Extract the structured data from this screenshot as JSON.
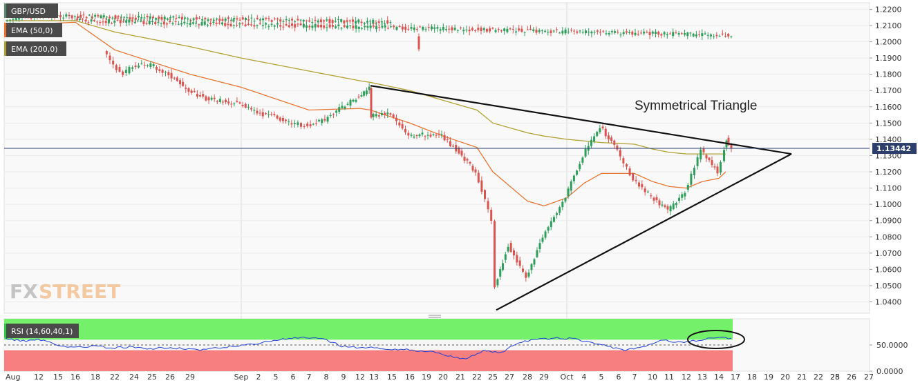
{
  "chart_data": {
    "type": "candlestick",
    "symbol": "GBP/USD",
    "legend": [
      {
        "label": "GBP/USD",
        "color": "#5b8c6e"
      },
      {
        "label": "EMA (50,0)",
        "color": "#e8742f"
      },
      {
        "label": "EMA (200,0)",
        "color": "#b0a232"
      }
    ],
    "y_ticks": [
      "1.2200",
      "1.2100",
      "1.2000",
      "1.1900",
      "1.1800",
      "1.1700",
      "1.1600",
      "1.1500",
      "1.1400",
      "1.1300",
      "1.1200",
      "1.1100",
      "1.1000",
      "1.0900",
      "1.0800",
      "1.0700",
      "1.0600",
      "1.0500",
      "1.0400"
    ],
    "ylim": [
      1.033,
      1.224
    ],
    "x_ticks": [
      "Aug",
      "12",
      "15",
      "16",
      "18",
      "22",
      "24",
      "25",
      "26",
      "29",
      "Sep",
      "2",
      "5",
      "6",
      "7",
      "8",
      "9",
      "12",
      "13",
      "15",
      "16",
      "19",
      "20",
      "21",
      "22",
      "25",
      "27",
      "28",
      "29",
      "Oct",
      "4",
      "5",
      "6",
      "7",
      "10",
      "11",
      "12",
      "13",
      "14",
      "17",
      "18",
      "19",
      "20",
      "21",
      "22",
      "25",
      "26",
      "27",
      "28"
    ],
    "current_price": {
      "label": "1.13442",
      "value": 1.13442
    },
    "annotation": "Symmetrical Triangle",
    "trendlines": [
      {
        "from": {
          "x": 13.0,
          "y": 1.173
        },
        "to": {
          "x": 21.7,
          "y": 1.131
        }
      },
      {
        "from": {
          "x": 25.0,
          "y": 1.035
        },
        "to": {
          "x": 21.7,
          "y": 1.131
        }
      }
    ],
    "price_path": [
      [
        "Aug",
        1.213
      ],
      [
        "12",
        1.216
      ],
      [
        "15",
        1.212
      ],
      [
        "16",
        1.213
      ],
      [
        "18",
        1.204
      ],
      [
        "19",
        1.195
      ],
      [
        "22",
        1.185
      ],
      [
        "23",
        1.18
      ],
      [
        "24",
        1.185
      ],
      [
        "25",
        1.186
      ],
      [
        "26",
        1.18
      ],
      [
        "29",
        1.17
      ],
      [
        "30",
        1.165
      ],
      [
        "Sep",
        1.162
      ],
      [
        "2",
        1.156
      ],
      [
        "5",
        1.154
      ],
      [
        "6",
        1.15
      ],
      [
        "7",
        1.148
      ],
      [
        "8",
        1.152
      ],
      [
        "9",
        1.16
      ],
      [
        "12",
        1.166
      ],
      [
        "13",
        1.172
      ],
      [
        "13b",
        1.154
      ],
      [
        "15",
        1.156
      ],
      [
        "16",
        1.142
      ],
      [
        "19",
        1.143
      ],
      [
        "20",
        1.142
      ],
      [
        "21",
        1.132
      ],
      [
        "22",
        1.12
      ],
      [
        "25",
        1.09
      ],
      [
        "25b",
        1.05
      ],
      [
        "27",
        1.075
      ],
      [
        "28",
        1.055
      ],
      [
        "29",
        1.08
      ],
      [
        "Oct",
        1.105
      ],
      [
        "4",
        1.13
      ],
      [
        "5",
        1.148
      ],
      [
        "6",
        1.133
      ],
      [
        "7",
        1.115
      ],
      [
        "10",
        1.105
      ],
      [
        "11",
        1.096
      ],
      [
        "12",
        1.108
      ],
      [
        "13",
        1.133
      ],
      [
        "14",
        1.12
      ],
      [
        "17",
        1.134
      ],
      [
        "17b",
        1.14
      ],
      [
        "18",
        1.1344
      ]
    ],
    "ema50": [
      [
        "Aug",
        1.21
      ],
      [
        "16",
        1.212
      ],
      [
        "22",
        1.195
      ],
      [
        "29",
        1.18
      ],
      [
        "Sep",
        1.172
      ],
      [
        "7",
        1.158
      ],
      [
        "12",
        1.159
      ],
      [
        "13",
        1.158
      ],
      [
        "16",
        1.15
      ],
      [
        "20",
        1.142
      ],
      [
        "22",
        1.135
      ],
      [
        "25",
        1.12
      ],
      [
        "28",
        1.102
      ],
      [
        "29",
        1.099
      ],
      [
        "Oct",
        1.104
      ],
      [
        "4",
        1.113
      ],
      [
        "5",
        1.119
      ],
      [
        "7",
        1.119
      ],
      [
        "10",
        1.114
      ],
      [
        "11",
        1.111
      ],
      [
        "12",
        1.11
      ],
      [
        "13",
        1.114
      ],
      [
        "14",
        1.116
      ],
      [
        "17",
        1.12
      ]
    ],
    "ema200": [
      [
        "Aug",
        1.213
      ],
      [
        "16",
        1.213
      ],
      [
        "22",
        1.206
      ],
      [
        "29",
        1.197
      ],
      [
        "Sep",
        1.19
      ],
      [
        "7",
        1.182
      ],
      [
        "12",
        1.176
      ],
      [
        "13",
        1.175
      ],
      [
        "16",
        1.17
      ],
      [
        "20",
        1.164
      ],
      [
        "22",
        1.158
      ],
      [
        "25",
        1.15
      ],
      [
        "28",
        1.144
      ],
      [
        "29",
        1.142
      ],
      [
        "Oct",
        1.14
      ],
      [
        "4",
        1.139
      ],
      [
        "5",
        1.138
      ],
      [
        "7",
        1.137
      ],
      [
        "10",
        1.134
      ],
      [
        "11",
        1.132
      ],
      [
        "12",
        1.131
      ],
      [
        "14",
        1.131
      ],
      [
        "17",
        1.131
      ]
    ],
    "rsi": {
      "label": "RSI (14,60,40,1)",
      "upper": 60,
      "lower": 40,
      "y_ticks": [
        "50.0000",
        "0.0000"
      ],
      "ylim": [
        0,
        100
      ],
      "values": [
        62,
        58,
        60,
        50,
        45,
        48,
        44,
        46,
        42,
        45,
        44,
        40,
        44,
        48,
        52,
        58,
        62,
        64,
        60,
        48,
        45,
        44,
        42,
        40,
        38,
        30,
        22,
        40,
        35,
        55,
        60,
        63,
        62,
        55,
        48,
        40,
        45,
        60,
        55,
        58,
        64,
        63
      ]
    }
  }
}
